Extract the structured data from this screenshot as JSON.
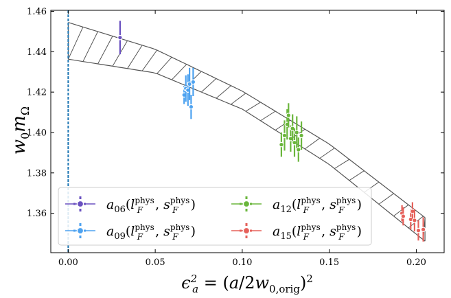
{
  "chart_data": {
    "type": "scatter",
    "xlabel": "ε_a² = (a/2w_0,orig)²",
    "ylabel": "w_0 m_Ω",
    "xlim": [
      -0.01,
      0.216
    ],
    "ylim": [
      1.3405,
      1.4605
    ],
    "xticks": [
      "0.00",
      "0.05",
      "0.10",
      "0.15",
      "0.20"
    ],
    "yticks": [
      "1.36",
      "1.38",
      "1.40",
      "1.42",
      "1.44",
      "1.46"
    ],
    "xtick_values": [
      0.0,
      0.05,
      0.1,
      0.15,
      0.2
    ],
    "ytick_values": [
      1.36,
      1.38,
      1.4,
      1.42,
      1.44,
      1.46
    ],
    "vline_x": 0.0,
    "band": {
      "x": [
        0.0,
        0.05,
        0.1,
        0.15,
        0.205
      ],
      "upper": [
        1.4545,
        1.4412,
        1.4205,
        1.3943,
        1.3579
      ],
      "lower": [
        1.4363,
        1.4295,
        1.4116,
        1.3842,
        1.3462
      ]
    },
    "legend_placement": "lower-left",
    "series": [
      {
        "name": "a06(l_F^phys, s_F^phys)",
        "label_main": "a",
        "label_sub": "06",
        "label_tail": "(l_F^phys, s_F^phys)",
        "color": "#6a51c0",
        "points": [
          {
            "x": 0.0298,
            "y": 1.447,
            "err": 0.0083
          }
        ]
      },
      {
        "name": "a09(l_F^phys, s_F^phys)",
        "label_main": "a",
        "label_sub": "09",
        "label_tail": "(l_F^phys, s_F^phys)",
        "color": "#4da2f0",
        "points": [
          {
            "x": 0.0666,
            "y": 1.4186,
            "err": 0.0045
          },
          {
            "x": 0.0676,
            "y": 1.4218,
            "err": 0.0065
          },
          {
            "x": 0.0688,
            "y": 1.421,
            "err": 0.0078
          },
          {
            "x": 0.0697,
            "y": 1.424,
            "err": 0.008
          },
          {
            "x": 0.0706,
            "y": 1.4127,
            "err": 0.006
          },
          {
            "x": 0.0718,
            "y": 1.425,
            "err": 0.007
          }
        ]
      },
      {
        "name": "a12(l_F^phys, s_F^phys)",
        "label_main": "a",
        "label_sub": "12",
        "label_tail": "(l_F^phys, s_F^phys)",
        "color": "#6ab63c",
        "points": [
          {
            "x": 0.1225,
            "y": 1.394,
            "err": 0.006
          },
          {
            "x": 0.1243,
            "y": 1.3985,
            "err": 0.0075
          },
          {
            "x": 0.1258,
            "y": 1.404,
            "err": 0.0075
          },
          {
            "x": 0.1266,
            "y": 1.4085,
            "err": 0.006
          },
          {
            "x": 0.1278,
            "y": 1.397,
            "err": 0.0065
          },
          {
            "x": 0.1289,
            "y": 1.402,
            "err": 0.007
          },
          {
            "x": 0.13,
            "y": 1.395,
            "err": 0.007
          },
          {
            "x": 0.1313,
            "y": 1.4,
            "err": 0.008
          },
          {
            "x": 0.1323,
            "y": 1.3915,
            "err": 0.006
          },
          {
            "x": 0.134,
            "y": 1.3985,
            "err": 0.007
          }
        ]
      },
      {
        "name": "a15(l_F^phys, s_F^phys)",
        "label_main": "a",
        "label_sub": "15",
        "label_tail": "(l_F^phys, s_F^phys)",
        "color": "#e5605a",
        "points": [
          {
            "x": 0.1918,
            "y": 1.36,
            "err": 0.004
          },
          {
            "x": 0.1925,
            "y": 1.3585,
            "err": 0.0045
          },
          {
            "x": 0.1968,
            "y": 1.357,
            "err": 0.005
          },
          {
            "x": 0.1978,
            "y": 1.361,
            "err": 0.0045
          },
          {
            "x": 0.199,
            "y": 1.3565,
            "err": 0.0055
          },
          {
            "x": 0.2012,
            "y": 1.3515,
            "err": 0.005
          },
          {
            "x": 0.204,
            "y": 1.352,
            "err": 0.006
          }
        ]
      }
    ]
  }
}
